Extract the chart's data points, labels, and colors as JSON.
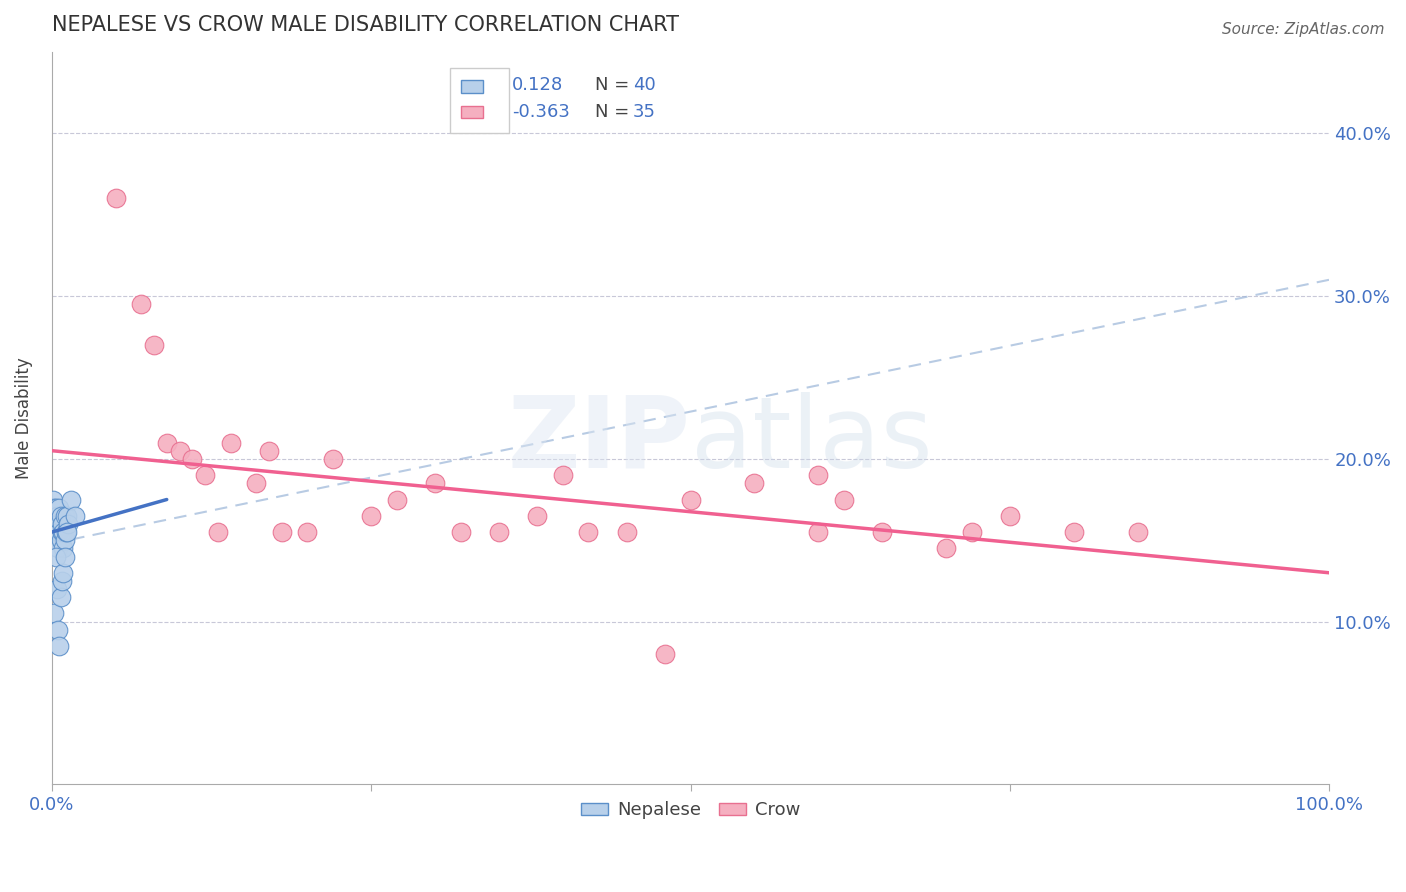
{
  "title": "NEPALESE VS CROW MALE DISABILITY CORRELATION CHART",
  "source": "Source: ZipAtlas.com",
  "ylabel": "Male Disability",
  "xlabel": "",
  "xlim": [
    0.0,
    1.0
  ],
  "ylim": [
    0.0,
    0.45
  ],
  "yticks": [
    0.1,
    0.2,
    0.3,
    0.4
  ],
  "ytick_labels": [
    "10.0%",
    "20.0%",
    "30.0%",
    "40.0%"
  ],
  "xtick_labels": [
    "0.0%",
    "100.0%"
  ],
  "nepalese_R": 0.128,
  "nepalese_N": 40,
  "crow_R": -0.363,
  "crow_N": 35,
  "nepalese_color": "#b8d0ea",
  "crow_color": "#f5afc0",
  "nepalese_edge_color": "#5b8fc9",
  "crow_edge_color": "#e87090",
  "nepalese_line_color": "#4472c4",
  "crow_line_color": "#f06090",
  "dash_line_color": "#9ab5d8",
  "background_color": "#ffffff",
  "grid_color": "#c8c8d8",
  "legend_R_color": "#4472c4",
  "legend_N_color": "#4472c4",
  "nepalese_x": [
    0.001,
    0.001,
    0.001,
    0.002,
    0.002,
    0.002,
    0.003,
    0.003,
    0.003,
    0.004,
    0.004,
    0.004,
    0.005,
    0.005,
    0.005,
    0.006,
    0.006,
    0.007,
    0.007,
    0.008,
    0.008,
    0.009,
    0.009,
    0.01,
    0.01,
    0.011,
    0.012,
    0.013,
    0.015,
    0.018,
    0.002,
    0.003,
    0.004,
    0.005,
    0.006,
    0.007,
    0.008,
    0.009,
    0.01,
    0.012
  ],
  "nepalese_y": [
    0.165,
    0.155,
    0.175,
    0.16,
    0.155,
    0.17,
    0.155,
    0.16,
    0.17,
    0.155,
    0.165,
    0.16,
    0.145,
    0.155,
    0.16,
    0.155,
    0.17,
    0.15,
    0.165,
    0.155,
    0.16,
    0.145,
    0.155,
    0.165,
    0.15,
    0.155,
    0.165,
    0.16,
    0.175,
    0.165,
    0.105,
    0.14,
    0.12,
    0.095,
    0.085,
    0.115,
    0.125,
    0.13,
    0.14,
    0.155
  ],
  "crow_x": [
    0.05,
    0.07,
    0.08,
    0.09,
    0.1,
    0.11,
    0.12,
    0.13,
    0.14,
    0.16,
    0.17,
    0.18,
    0.2,
    0.22,
    0.25,
    0.27,
    0.3,
    0.32,
    0.35,
    0.38,
    0.4,
    0.42,
    0.45,
    0.5,
    0.55,
    0.6,
    0.62,
    0.65,
    0.7,
    0.72,
    0.75,
    0.8,
    0.85,
    0.6,
    0.48
  ],
  "crow_y": [
    0.36,
    0.295,
    0.27,
    0.21,
    0.205,
    0.2,
    0.19,
    0.155,
    0.21,
    0.185,
    0.205,
    0.155,
    0.155,
    0.2,
    0.165,
    0.175,
    0.185,
    0.155,
    0.155,
    0.165,
    0.19,
    0.155,
    0.155,
    0.175,
    0.185,
    0.155,
    0.175,
    0.155,
    0.145,
    0.155,
    0.165,
    0.155,
    0.155,
    0.19,
    0.08
  ],
  "nep_line_x": [
    0.0,
    0.09
  ],
  "nep_line_y": [
    0.155,
    0.175
  ],
  "crow_line_x": [
    0.0,
    1.0
  ],
  "crow_line_y": [
    0.205,
    0.13
  ],
  "dash_line_x": [
    0.0,
    1.0
  ],
  "dash_line_y": [
    0.148,
    0.31
  ]
}
